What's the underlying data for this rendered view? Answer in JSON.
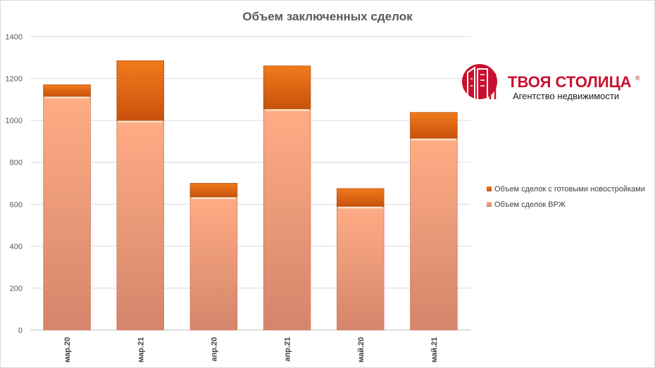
{
  "chart_data": {
    "type": "bar",
    "stacked": true,
    "title": "Объем заключенных  сделок",
    "categories": [
      "мар.20",
      "мар.21",
      "апр.20",
      "апр.21",
      "май.20",
      "май.21"
    ],
    "series": [
      {
        "name": "Объем сделок ВРЖ",
        "values": [
          1115,
          1000,
          635,
          1055,
          590,
          915
        ],
        "color": "#f4a57c"
      },
      {
        "name": "Объем сделок с готовыми новостройками",
        "values": [
          55,
          285,
          65,
          205,
          85,
          123
        ],
        "color": "#e06a12"
      }
    ],
    "ylim": [
      0,
      1400
    ],
    "yticks": [
      0,
      200,
      400,
      600,
      800,
      1000,
      1200,
      1400
    ],
    "grid": true,
    "legend_position": "right"
  },
  "logo": {
    "name": "ТВОЯ СТОЛИЦА",
    "registered": "®",
    "tagline": "Агентство недвижимости",
    "color": "#c8102e"
  }
}
